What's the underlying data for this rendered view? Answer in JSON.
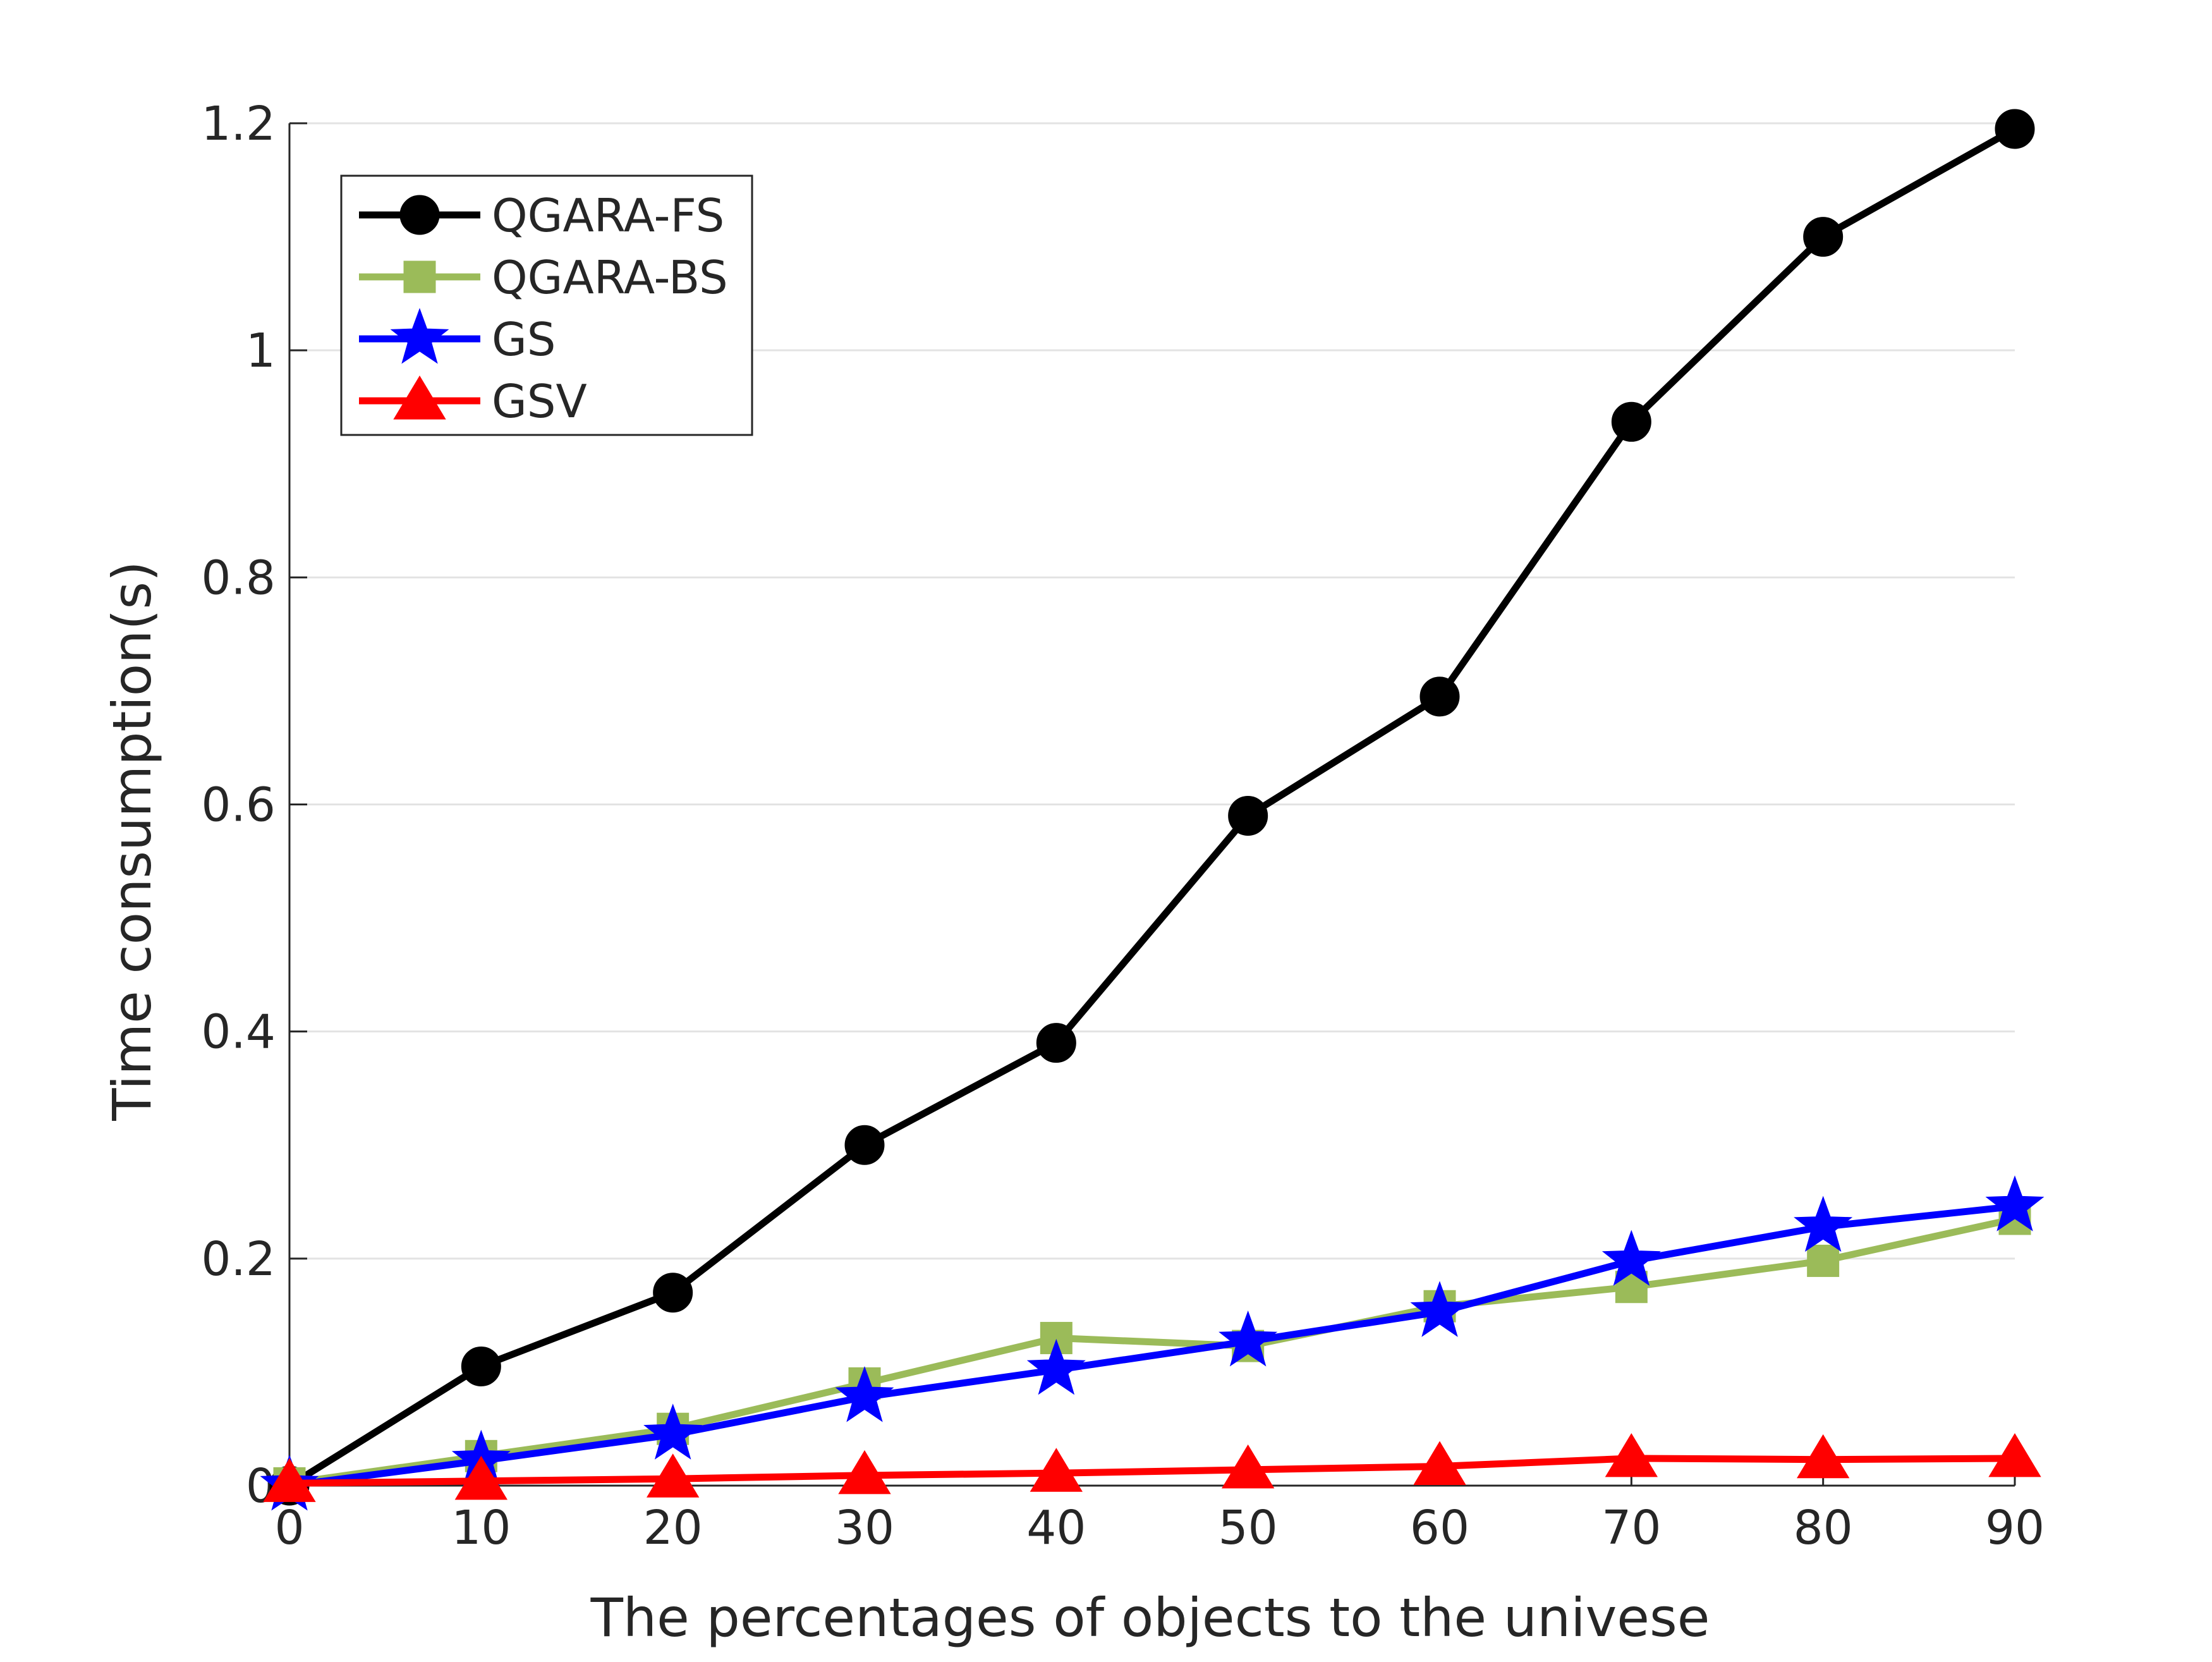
{
  "chart_data": {
    "type": "line",
    "title": "",
    "xlabel": "The percentages of objects to the univese",
    "ylabel": "Time consumption(s)",
    "x": [
      0,
      10,
      20,
      30,
      40,
      50,
      60,
      70,
      80,
      90
    ],
    "xlim": [
      0,
      90
    ],
    "ylim": [
      0,
      1.2
    ],
    "xticks": [
      0,
      10,
      20,
      30,
      40,
      50,
      60,
      70,
      80,
      90
    ],
    "yticks": [
      0,
      0.2,
      0.4,
      0.6,
      0.8,
      1,
      1.2
    ],
    "xtick_labels": [
      "0",
      "10",
      "20",
      "30",
      "40",
      "50",
      "60",
      "70",
      "80",
      "90"
    ],
    "ytick_labels": [
      "0",
      "0.2",
      "0.4",
      "0.6",
      "0.8",
      "1",
      "1.2"
    ],
    "grid": "horizontal",
    "legend_position": "top-left",
    "series": [
      {
        "name": "QGARA-FS",
        "color": "#000000",
        "marker": "circle",
        "values": [
          0.0,
          0.105,
          0.17,
          0.3,
          0.39,
          0.59,
          0.695,
          0.937,
          1.1,
          1.195
        ]
      },
      {
        "name": "QGARA-BS",
        "color": "#9BBB59",
        "marker": "square",
        "values": [
          0.002,
          0.026,
          0.05,
          0.09,
          0.13,
          0.123,
          0.158,
          0.175,
          0.198,
          0.235
        ]
      },
      {
        "name": "GS",
        "color": "#0000FF",
        "marker": "star",
        "values": [
          0.0,
          0.022,
          0.045,
          0.078,
          0.102,
          0.127,
          0.153,
          0.198,
          0.228,
          0.246
        ]
      },
      {
        "name": "GSV",
        "color": "#FF0000",
        "marker": "triangle",
        "values": [
          0.002,
          0.004,
          0.006,
          0.009,
          0.011,
          0.014,
          0.017,
          0.024,
          0.023,
          0.024
        ]
      }
    ]
  }
}
